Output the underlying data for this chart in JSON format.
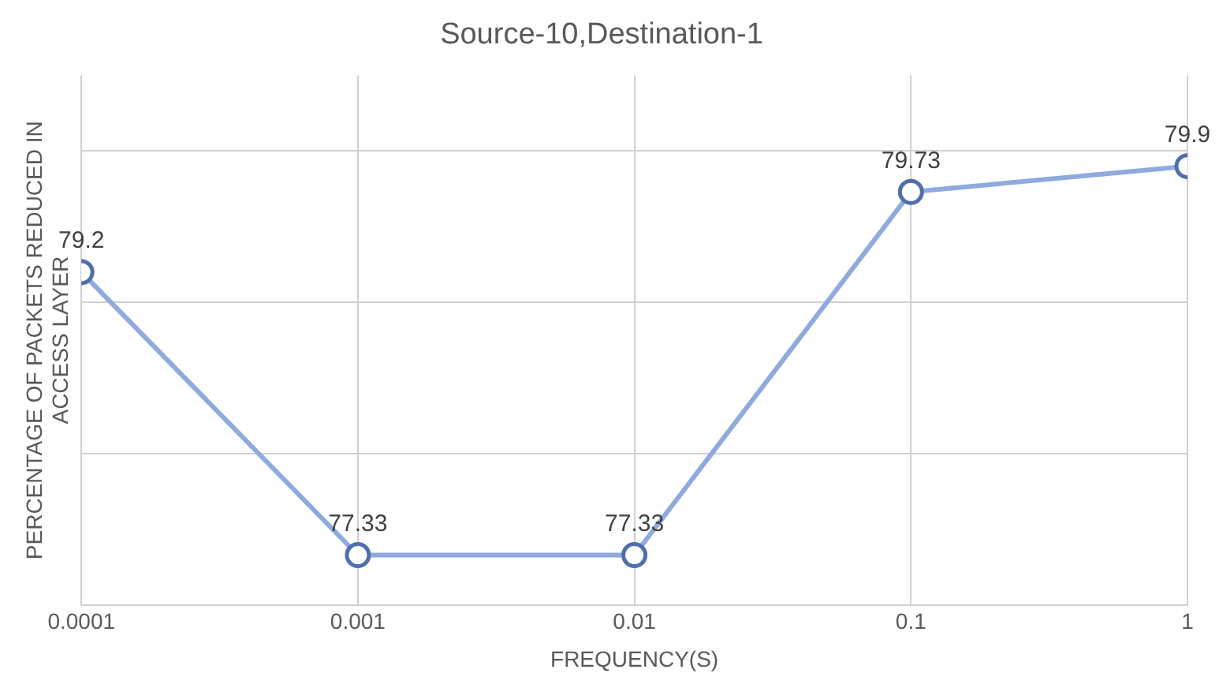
{
  "chart_data": {
    "type": "line",
    "title": "Source-10,Destination-1",
    "xlabel": "FREQUENCY(S)",
    "ylabel": "PERCENTAGE OF PACKETS REDUCED IN ACCESS LAYER",
    "x": [
      0.0001,
      0.001,
      0.01,
      0.1,
      1
    ],
    "series": [
      {
        "color": "#8faadc",
        "values": [
          79.2,
          77.33,
          77.33,
          79.73,
          79.9
        ]
      }
    ],
    "log": "x",
    "xlim": [
      0.0001,
      1
    ],
    "xticks": [
      {
        "value": 0.0001,
        "label": "0.0001"
      },
      {
        "value": 0.001,
        "label": "0.001"
      },
      {
        "value": 0.01,
        "label": "0.01"
      },
      {
        "value": 0.1,
        "label": "0.1"
      },
      {
        "value": 1,
        "label": "1"
      }
    ],
    "ylim": [
      77,
      80.5
    ],
    "yticks": [
      {
        "value": 77,
        "label": null
      },
      {
        "value": 78,
        "label": null
      },
      {
        "value": 79,
        "label": null
      },
      {
        "value": 80,
        "label": null
      }
    ],
    "tick_labels": "x",
    "grid": true,
    "marker": "circle",
    "line_style": "solid",
    "data_labels": true,
    "legend": false
  }
}
